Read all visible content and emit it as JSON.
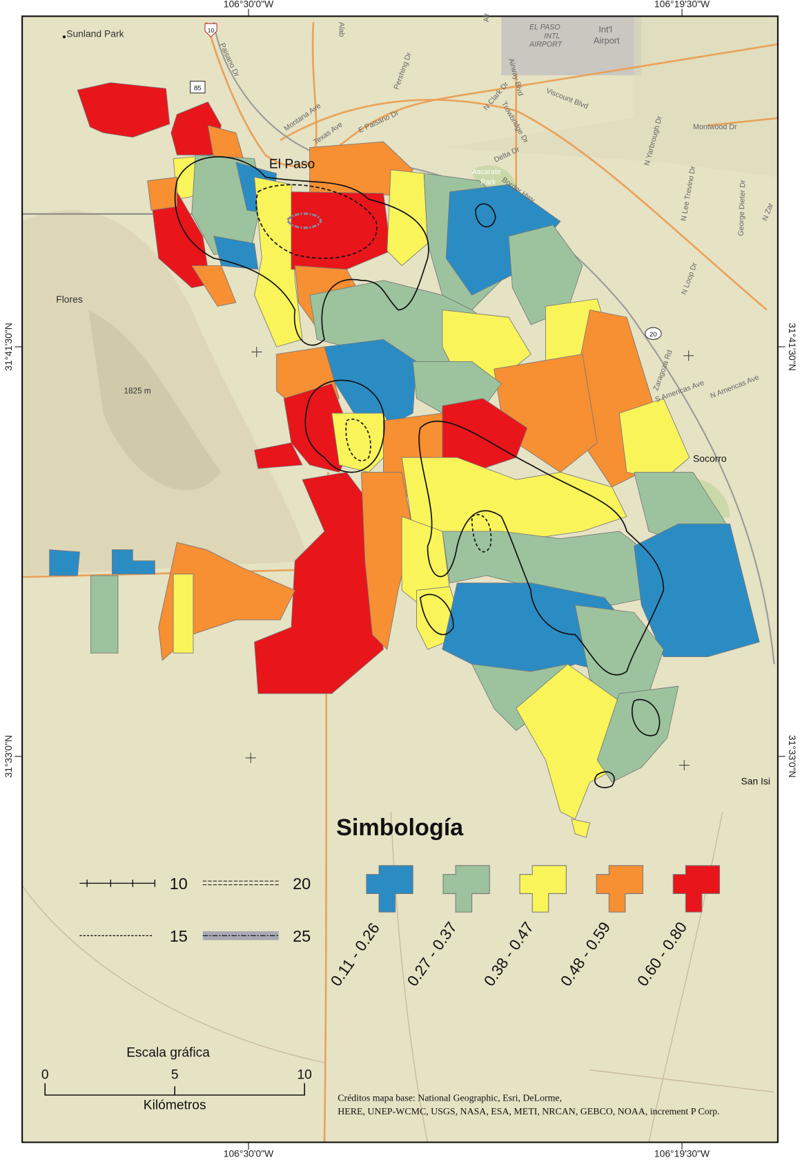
{
  "coordinates": {
    "top": [
      "106°30'0\"W",
      "106°19'30\"W"
    ],
    "bottom": [
      "106°30'0\"W",
      "106°19'30\"W"
    ],
    "left": [
      "31°41'30\"N",
      "31°33'0\"N"
    ],
    "right": [
      "31°41'30\"N",
      "31°33'0\"N"
    ]
  },
  "places": {
    "sunland_park": "Sunland Park",
    "el_paso": "El Paso",
    "flores": "Flores",
    "elevation": "1825 m",
    "socorro": "Socorro",
    "san_isidro": "San Isi",
    "airport_1": "EL PASO",
    "airport_2": "INTL",
    "airport_3": "AIRPORT",
    "intl_airport_1": "Int'l",
    "intl_airport_2": "Airport",
    "ascarate_1": "Ascarate",
    "ascarate_2": "Park"
  },
  "streets": [
    "Paisano Dr",
    "Montana Ave",
    "Texas Ave",
    "E Paisano Dr",
    "Pershing Dr",
    "Airway Blvd",
    "N Clark Dr",
    "Trowbridge Dr",
    "Viscount Blvd",
    "Delta Dr",
    "Border Hwy",
    "N Yarbrough Dr",
    "Montwood Dr",
    "N Lee Trevino Dr",
    "George Dieter Dr",
    "N Loop Dr",
    "Zaragoza Rd",
    "S Americas Ave",
    "N Americas Ave",
    "N Zar",
    "Alab",
    "Air"
  ],
  "highways": [
    "10",
    "85",
    "20"
  ],
  "legend": {
    "title": "Simbología",
    "contours": [
      {
        "label": "10",
        "style": "ticked"
      },
      {
        "label": "20",
        "style": "double-dashed"
      },
      {
        "label": "15",
        "style": "dashed"
      },
      {
        "label": "25",
        "style": "dash-dot-gray"
      }
    ],
    "classes": [
      {
        "label": "0.11 - 0.26",
        "color": "#2b8cc4"
      },
      {
        "label": "0.27 - 0.37",
        "color": "#9cc39e"
      },
      {
        "label": "0.38 - 0.47",
        "color": "#f9f45a"
      },
      {
        "label": "0.48 - 0.59",
        "color": "#f78f33"
      },
      {
        "label": "0.60 - 0.80",
        "color": "#e8151b"
      }
    ]
  },
  "scale_bar": {
    "title": "Escala gráfica",
    "ticks": [
      "0",
      "5",
      "10"
    ],
    "unit": "Kilómetros"
  },
  "credits": {
    "line1": "Créditos mapa base: National Geographic, Esri, DeLorme,",
    "line2": "HERE, UNEP-WCMC, USGS, NASA, ESA, METI, NRCAN, GEBCO, NOAA, increment P Corp."
  },
  "colors": {
    "background": "#e6e2c4",
    "frame": "#111111",
    "road": "#e9a25a"
  }
}
